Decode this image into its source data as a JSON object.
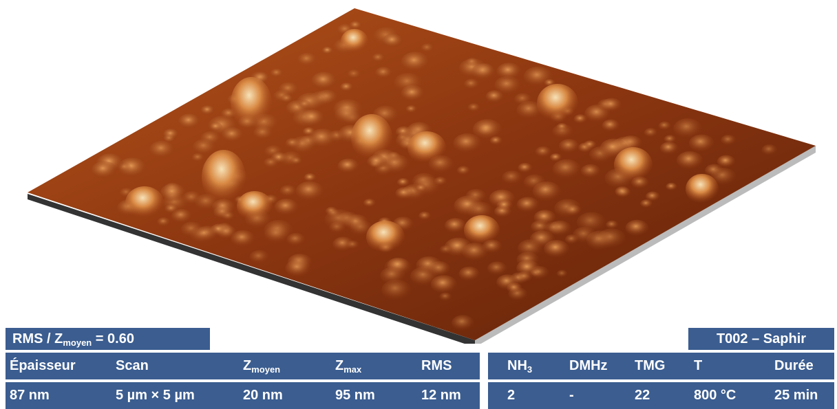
{
  "left": {
    "ratio": {
      "base": "RMS / Z",
      "sub": "moyen",
      "after": " = 0.60"
    },
    "headers": [
      "Épaisseur",
      "Scan",
      {
        "base": "Z",
        "sub": "moyen"
      },
      {
        "base": "Z",
        "sub": "max"
      },
      "RMS"
    ],
    "values": [
      "87 nm",
      "5 µm × 5 µm",
      "20 nm",
      "95 nm",
      "12 nm"
    ]
  },
  "right": {
    "title": "T002 – Saphir",
    "headers": [
      {
        "base": "NH",
        "sub": "3"
      },
      "DMHz",
      "TMG",
      "T",
      "Durée"
    ],
    "values": [
      "2",
      "-",
      "22",
      "800 °C",
      "25 min"
    ]
  }
}
